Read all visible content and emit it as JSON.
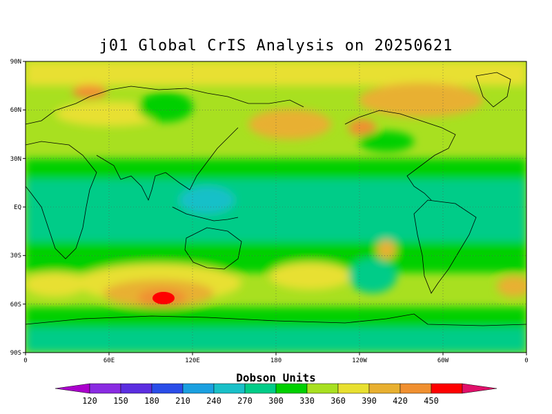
{
  "title": "j01 Global CrIS Analysis on 20250621",
  "map": {
    "lat_labels": [
      "90N",
      "60N",
      "30N",
      "EQ",
      "30S",
      "60S",
      "90S"
    ],
    "lon_labels": [
      "0",
      "60E",
      "120E",
      "180",
      "120W",
      "60W",
      "0"
    ],
    "grid": true,
    "field": "total column ozone",
    "colors": {
      "c120": "#8a2be2",
      "c150": "#5b2ee0",
      "c180": "#2a4de8",
      "c210": "#1aa0e0",
      "c240": "#19c0c8",
      "c270": "#00cc88",
      "c300": "#00d000",
      "c330": "#a8e020",
      "c360": "#e8e030",
      "c390": "#e8b030",
      "c420": "#f09030",
      "c450": "#ff0000",
      "over": "#e0106a",
      "land": "#000000"
    }
  },
  "colorbar": {
    "title": "Dobson Units",
    "labels": [
      "120",
      "150",
      "180",
      "210",
      "240",
      "270",
      "300",
      "330",
      "360",
      "390",
      "420",
      "450"
    ],
    "colors": [
      "#8a2be2",
      "#5b2ee0",
      "#2a4de8",
      "#1aa0e0",
      "#19c0c8",
      "#00cc88",
      "#00d000",
      "#a8e020",
      "#e8e030",
      "#e8b030",
      "#f09030",
      "#ff0000"
    ],
    "under_color": "#aa00cc",
    "over_color": "#e0106a"
  }
}
